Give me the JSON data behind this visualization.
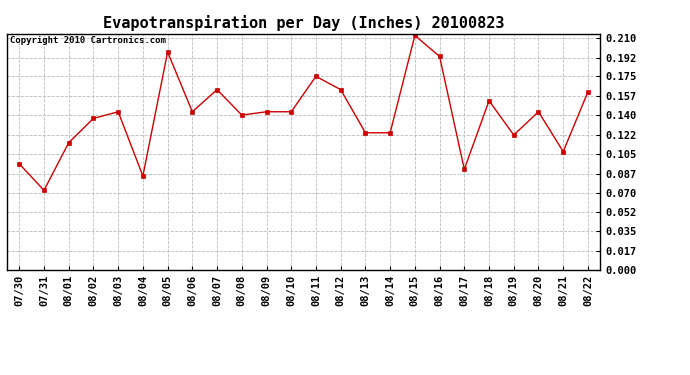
{
  "title": "Evapotranspiration per Day (Inches) 20100823",
  "copyright_text": "Copyright 2010 Cartronics.com",
  "x_labels": [
    "07/30",
    "07/31",
    "08/01",
    "08/02",
    "08/03",
    "08/04",
    "08/05",
    "08/06",
    "08/07",
    "08/08",
    "08/09",
    "08/10",
    "08/11",
    "08/12",
    "08/13",
    "08/14",
    "08/15",
    "08/16",
    "08/17",
    "08/18",
    "08/19",
    "08/20",
    "08/21",
    "08/22"
  ],
  "y_values": [
    0.096,
    0.072,
    0.115,
    0.137,
    0.143,
    0.085,
    0.197,
    0.143,
    0.163,
    0.14,
    0.143,
    0.143,
    0.175,
    0.163,
    0.124,
    0.124,
    0.212,
    0.193,
    0.091,
    0.153,
    0.122,
    0.143,
    0.107,
    0.161
  ],
  "line_color": "#cc0000",
  "marker": "s",
  "marker_size": 2.5,
  "background_color": "#ffffff",
  "grid_color": "#bbbbbb",
  "y_ticks": [
    0.0,
    0.017,
    0.035,
    0.052,
    0.07,
    0.087,
    0.105,
    0.122,
    0.14,
    0.157,
    0.175,
    0.192,
    0.21
  ],
  "ylim": [
    0.0,
    0.2135
  ],
  "title_fontsize": 11,
  "copyright_fontsize": 6.5,
  "tick_fontsize": 7.5,
  "figwidth": 6.9,
  "figheight": 3.75,
  "dpi": 100
}
